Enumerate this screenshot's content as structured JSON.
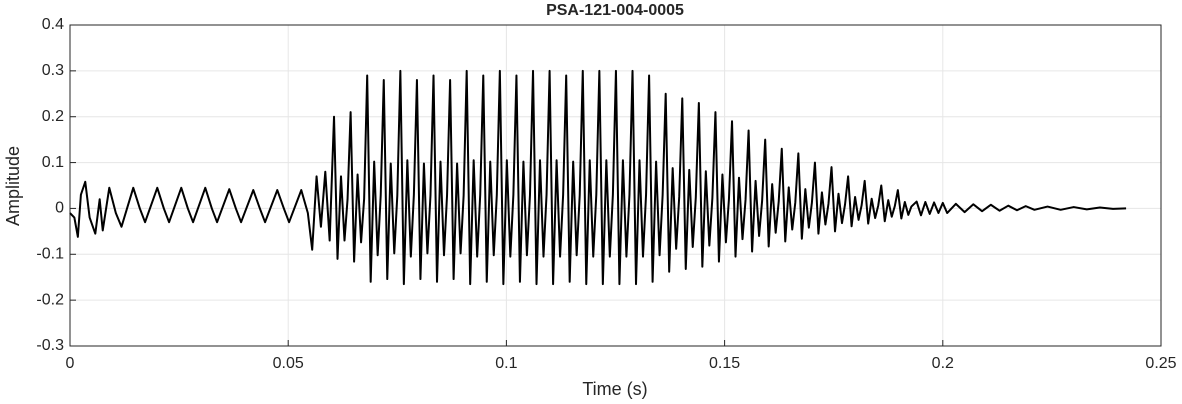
{
  "chart_data": {
    "type": "line",
    "title": "PSA-121-004-0005",
    "xlabel": "Time (s)",
    "ylabel": "Amplitude",
    "xlim": [
      0,
      0.25
    ],
    "ylim": [
      -0.3,
      0.4
    ],
    "xticks": [
      0,
      0.05,
      0.1,
      0.15,
      0.2,
      0.25
    ],
    "yticks": [
      -0.3,
      -0.2,
      -0.1,
      0,
      0.1,
      0.2,
      0.3,
      0.4
    ],
    "grid": true,
    "x": [
      0,
      0.001,
      0.0018,
      0.0025,
      0.0035,
      0.0045,
      0.0058,
      0.0068,
      0.0075,
      0.009,
      0.0105,
      0.0118,
      0.0145,
      0.016,
      0.0172,
      0.02,
      0.0215,
      0.0227,
      0.0255,
      0.027,
      0.0282,
      0.031,
      0.0325,
      0.0337,
      0.0365,
      0.038,
      0.0392,
      0.042,
      0.0435,
      0.0447,
      0.0475,
      0.049,
      0.0502,
      0.053,
      0.0545,
      0.0555,
      0.0565,
      0.0575,
      0.0585,
      0.0595,
      0.0605,
      0.0613,
      0.0621,
      0.0629,
      0.0636,
      0.0643,
      0.0651,
      0.0659,
      0.0667,
      0.0674,
      0.0681,
      0.0689,
      0.0697,
      0.0705,
      0.0712,
      0.0719,
      0.0727,
      0.0735,
      0.0743,
      0.075,
      0.0757,
      0.0765,
      0.0773,
      0.0781,
      0.0788,
      0.0795,
      0.0803,
      0.0811,
      0.0819,
      0.0826,
      0.0833,
      0.0841,
      0.0849,
      0.0857,
      0.0864,
      0.0871,
      0.0879,
      0.0887,
      0.0895,
      0.0902,
      0.0909,
      0.0917,
      0.0925,
      0.0933,
      0.094,
      0.0947,
      0.0955,
      0.0963,
      0.0971,
      0.0978,
      0.0985,
      0.0993,
      0.1001,
      0.1009,
      0.1016,
      0.1023,
      0.1031,
      0.1039,
      0.1047,
      0.1054,
      0.1061,
      0.1069,
      0.1077,
      0.1085,
      0.1092,
      0.1099,
      0.1107,
      0.1115,
      0.1123,
      0.113,
      0.1137,
      0.1145,
      0.1153,
      0.1161,
      0.1168,
      0.1175,
      0.1183,
      0.1191,
      0.1199,
      0.1206,
      0.1213,
      0.1221,
      0.1229,
      0.1237,
      0.1244,
      0.1251,
      0.1259,
      0.1267,
      0.1275,
      0.1282,
      0.1289,
      0.1297,
      0.1305,
      0.1313,
      0.132,
      0.1327,
      0.1335,
      0.1343,
      0.1351,
      0.1358,
      0.1365,
      0.1373,
      0.1381,
      0.1389,
      0.1396,
      0.1403,
      0.1411,
      0.1419,
      0.1427,
      0.1434,
      0.1441,
      0.1449,
      0.1457,
      0.1465,
      0.1472,
      0.1479,
      0.1487,
      0.1495,
      0.1503,
      0.151,
      0.1517,
      0.1525,
      0.1533,
      0.1541,
      0.1548,
      0.1555,
      0.1563,
      0.1571,
      0.1579,
      0.1586,
      0.1593,
      0.1601,
      0.1609,
      0.1617,
      0.1624,
      0.1631,
      0.1639,
      0.1647,
      0.1655,
      0.1662,
      0.1669,
      0.1677,
      0.1685,
      0.1693,
      0.17,
      0.1707,
      0.1715,
      0.1723,
      0.1731,
      0.1738,
      0.1745,
      0.1753,
      0.1761,
      0.1769,
      0.1776,
      0.1783,
      0.1791,
      0.1799,
      0.1807,
      0.1814,
      0.1821,
      0.1829,
      0.1837,
      0.1845,
      0.1852,
      0.1859,
      0.1867,
      0.1875,
      0.1883,
      0.189,
      0.1897,
      0.1905,
      0.1913,
      0.1921,
      0.1928,
      0.194,
      0.195,
      0.196,
      0.197,
      0.198,
      0.199,
      0.2,
      0.201,
      0.203,
      0.205,
      0.207,
      0.209,
      0.211,
      0.213,
      0.215,
      0.217,
      0.219,
      0.221,
      0.224,
      0.227,
      0.23,
      0.233,
      0.236,
      0.239,
      0.242
    ],
    "series": [
      {
        "name": "Amplitude",
        "color": "#000000",
        "values": [
          -0.01,
          -0.02,
          -0.062,
          0.03,
          0.058,
          -0.02,
          -0.055,
          0.02,
          -0.048,
          0.045,
          -0.01,
          -0.04,
          0.045,
          0,
          -0.03,
          0.045,
          0,
          -0.03,
          0.045,
          0,
          -0.03,
          0.045,
          0,
          -0.03,
          0.042,
          0,
          -0.03,
          0.04,
          0,
          -0.03,
          0.04,
          0,
          -0.03,
          0.04,
          -0.01,
          -0.09,
          0.07,
          -0.04,
          0.08,
          -0.07,
          0.2,
          -0.11,
          0.07,
          -0.07,
          0.02,
          0.21,
          -0.116,
          0.074,
          -0.074,
          0.021,
          0.29,
          -0.16,
          0.102,
          -0.102,
          0.029,
          0.28,
          -0.154,
          0.098,
          -0.098,
          0.028,
          0.3,
          -0.165,
          0.105,
          -0.105,
          0.03,
          0.28,
          -0.154,
          0.098,
          -0.098,
          0.028,
          0.29,
          -0.16,
          0.102,
          -0.102,
          0.029,
          0.28,
          -0.154,
          0.098,
          -0.098,
          0.028,
          0.3,
          -0.165,
          0.105,
          -0.105,
          0.03,
          0.29,
          -0.16,
          0.102,
          -0.102,
          0.029,
          0.3,
          -0.165,
          0.105,
          -0.105,
          0.03,
          0.29,
          -0.16,
          0.102,
          -0.102,
          0.029,
          0.3,
          -0.165,
          0.105,
          -0.105,
          0.03,
          0.3,
          -0.165,
          0.105,
          -0.105,
          0.03,
          0.29,
          -0.16,
          0.102,
          -0.102,
          0.029,
          0.3,
          -0.165,
          0.105,
          -0.105,
          0.03,
          0.3,
          -0.165,
          0.105,
          -0.105,
          0.03,
          0.3,
          -0.165,
          0.105,
          -0.105,
          0.03,
          0.3,
          -0.165,
          0.105,
          -0.105,
          0.03,
          0.29,
          -0.16,
          0.102,
          -0.102,
          0.029,
          0.25,
          -0.138,
          0.088,
          -0.088,
          0.025,
          0.24,
          -0.132,
          0.084,
          -0.084,
          0.024,
          0.23,
          -0.127,
          0.081,
          -0.081,
          0.023,
          0.21,
          -0.116,
          0.074,
          -0.074,
          0.021,
          0.19,
          -0.105,
          0.067,
          -0.067,
          0.019,
          0.17,
          -0.094,
          0.06,
          -0.06,
          0.017,
          0.15,
          -0.083,
          0.053,
          -0.053,
          0.015,
          0.13,
          -0.072,
          0.046,
          -0.046,
          0.013,
          0.12,
          -0.066,
          0.042,
          -0.042,
          0.012,
          0.1,
          -0.055,
          0.035,
          -0.035,
          0.01,
          0.09,
          -0.05,
          0.032,
          -0.032,
          0.009,
          0.07,
          -0.039,
          0.025,
          -0.025,
          0.007,
          0.06,
          -0.033,
          0.021,
          -0.021,
          0.006,
          0.05,
          -0.028,
          0.018,
          -0.018,
          0.005,
          0.04,
          -0.022,
          0.014,
          -0.014,
          0.004,
          0.015,
          -0.015,
          0.014,
          -0.012,
          0.013,
          -0.01,
          0.012,
          -0.01,
          0.01,
          -0.008,
          0.009,
          -0.006,
          0.008,
          -0.005,
          0.006,
          -0.004,
          0.005,
          -0.003,
          0.004,
          -0.003,
          0.003,
          -0.002,
          0.002,
          -0.001,
          0
        ]
      }
    ]
  }
}
